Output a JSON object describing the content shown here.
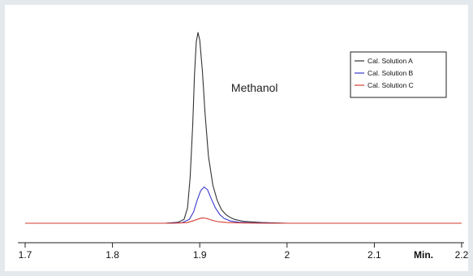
{
  "chart_data": {
    "type": "line",
    "title": "",
    "xlabel": "",
    "ylabel": "",
    "x_unit_label": "Min.",
    "xlim": [
      1.7,
      2.2
    ],
    "ylim": [
      0,
      1
    ],
    "x_ticks": [
      {
        "value": 1.7,
        "label": "1.7"
      },
      {
        "value": 1.8,
        "label": "1.8"
      },
      {
        "value": 1.9,
        "label": "1.9"
      },
      {
        "value": 2.0,
        "label": "2"
      },
      {
        "value": 2.1,
        "label": "2.1"
      },
      {
        "value": 2.2,
        "label": "2.2"
      }
    ],
    "annotations": [
      {
        "text": "Methanol",
        "x": 1.936,
        "y": 0.69
      }
    ],
    "legend": {
      "placement": "top-right"
    },
    "grid": false,
    "series": [
      {
        "name": "Cal. Solution A",
        "color": "#333333",
        "x": [
          1.7,
          1.84,
          1.86,
          1.875,
          1.882,
          1.886,
          1.889,
          1.892,
          1.894,
          1.896,
          1.898,
          1.9,
          1.903,
          1.906,
          1.91,
          1.915,
          1.92,
          1.925,
          1.93,
          1.935,
          1.94,
          1.95,
          1.97,
          2.0,
          2.2
        ],
        "y": [
          0.0,
          0.0,
          0.0,
          0.005,
          0.02,
          0.08,
          0.24,
          0.52,
          0.78,
          0.95,
          1.0,
          0.96,
          0.8,
          0.58,
          0.35,
          0.2,
          0.12,
          0.07,
          0.045,
          0.03,
          0.02,
          0.01,
          0.004,
          0.0,
          0.0
        ]
      },
      {
        "name": "Cal. Solution B",
        "color": "#3a3acf",
        "x": [
          1.7,
          1.86,
          1.88,
          1.888,
          1.893,
          1.897,
          1.901,
          1.905,
          1.909,
          1.913,
          1.918,
          1.923,
          1.928,
          1.935,
          1.945,
          1.96,
          2.0,
          2.2
        ],
        "y": [
          0.0,
          0.0,
          0.003,
          0.02,
          0.06,
          0.12,
          0.17,
          0.19,
          0.175,
          0.13,
          0.08,
          0.045,
          0.025,
          0.012,
          0.005,
          0.002,
          0.0,
          0.0
        ]
      },
      {
        "name": "Cal. Solution C",
        "color": "#d63a2f",
        "x": [
          1.7,
          1.87,
          1.885,
          1.892,
          1.898,
          1.903,
          1.908,
          1.913,
          1.92,
          1.93,
          1.945,
          1.97,
          2.2
        ],
        "y": [
          0.0,
          0.0,
          0.003,
          0.012,
          0.022,
          0.028,
          0.025,
          0.017,
          0.009,
          0.004,
          0.002,
          0.0,
          0.0
        ]
      }
    ]
  }
}
